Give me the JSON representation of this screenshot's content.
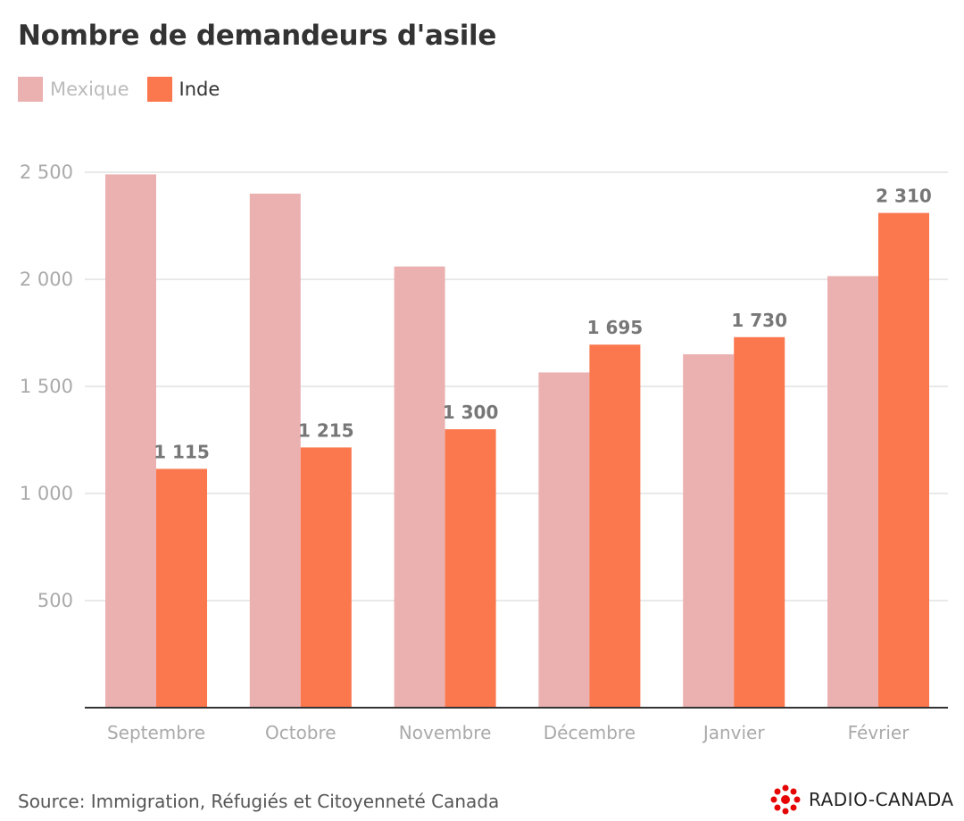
{
  "chart_data": {
    "type": "bar",
    "title": "Nombre de demandeurs d'asile",
    "categories": [
      "Septembre",
      "Octobre",
      "Novembre",
      "Décembre",
      "Janvier",
      "Février"
    ],
    "series": [
      {
        "name": "Mexique",
        "color": "#ebb1b0",
        "values": [
          2490,
          2400,
          2060,
          1565,
          1650,
          2015
        ],
        "labels_shown": false
      },
      {
        "name": "Inde",
        "color": "#fb774e",
        "values": [
          1115,
          1215,
          1300,
          1695,
          1730,
          2310
        ],
        "labels_shown": true,
        "data_labels": [
          "1 115",
          "1 215",
          "1 300",
          "1 695",
          "1 730",
          "2 310"
        ]
      }
    ],
    "yticks": [
      500,
      1000,
      1500,
      2000,
      2500
    ],
    "ytick_labels": [
      "500",
      "1 000",
      "1 500",
      "2 000",
      "2 500"
    ],
    "ylim": [
      0,
      2500
    ],
    "xlabel": "",
    "ylabel": "",
    "grid": true,
    "legend_placement": "top-left"
  },
  "source": "Source: Immigration, Réfugiés et Citoyenneté Canada",
  "logo": "RADIO-CANADA"
}
